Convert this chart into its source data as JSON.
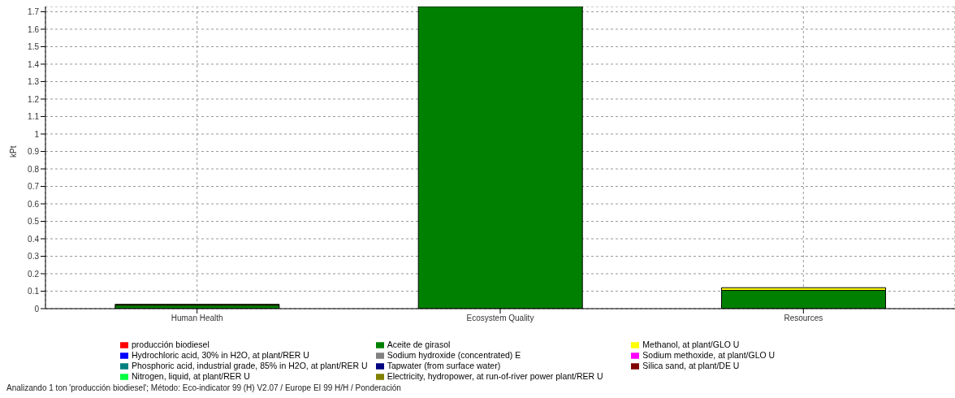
{
  "chart_data": {
    "type": "bar",
    "stacked": true,
    "ylabel": "kPt",
    "categories": [
      "Human Health",
      "Ecosystem Quality",
      "Resources"
    ],
    "series": [
      {
        "name": "producción biodiesel",
        "color": "#ff0000",
        "values": [
          0,
          0,
          0
        ]
      },
      {
        "name": "Hydrochloric acid, 30% in H2O, at plant/RER U",
        "color": "#0000ff",
        "values": [
          0,
          0,
          0
        ]
      },
      {
        "name": "Phosphoric acid, industrial grade, 85% in H2O, at plant/RER U",
        "color": "#008080",
        "values": [
          0,
          0,
          0
        ]
      },
      {
        "name": "Nitrogen, liquid, at plant/RER U",
        "color": "#00ff40",
        "values": [
          0,
          0,
          0
        ]
      },
      {
        "name": "Aceite de girasol",
        "color": "#008000",
        "values": [
          0.02,
          1.73,
          0.105
        ]
      },
      {
        "name": "Sodium hydroxide (concentrated) E",
        "color": "#808080",
        "values": [
          0,
          0,
          0
        ]
      },
      {
        "name": "Tapwater (from surface water)",
        "color": "#000080",
        "values": [
          0,
          0,
          0
        ]
      },
      {
        "name": "Electricity, hydropower, at run-of-river power plant/RER U",
        "color": "#808000",
        "values": [
          0,
          0,
          0
        ]
      },
      {
        "name": "Methanol, at plant/GLO U",
        "color": "#ffff00",
        "values": [
          0.005,
          0,
          0.015
        ]
      },
      {
        "name": "Sodium methoxide, at plant/GLO U",
        "color": "#ff00ff",
        "values": [
          0,
          0,
          0
        ]
      },
      {
        "name": "Silica sand, at plant/DE U",
        "color": "#800000",
        "values": [
          0,
          0,
          0
        ]
      }
    ],
    "ylim": [
      0,
      1.73
    ],
    "yticks": [
      0,
      0.1,
      0.2,
      0.3,
      0.4,
      0.5,
      0.6,
      0.7,
      0.8,
      0.9,
      1,
      1.1,
      1.2,
      1.3,
      1.4,
      1.5,
      1.6,
      1.7
    ],
    "grid": true,
    "legend": "bottom",
    "annotations": [
      "Analizando 1 ton 'producción biodiesel';  Método: Eco-indicator 99 (H) V2.07 /  Europe EI 99 H/H / Ponderación"
    ]
  }
}
